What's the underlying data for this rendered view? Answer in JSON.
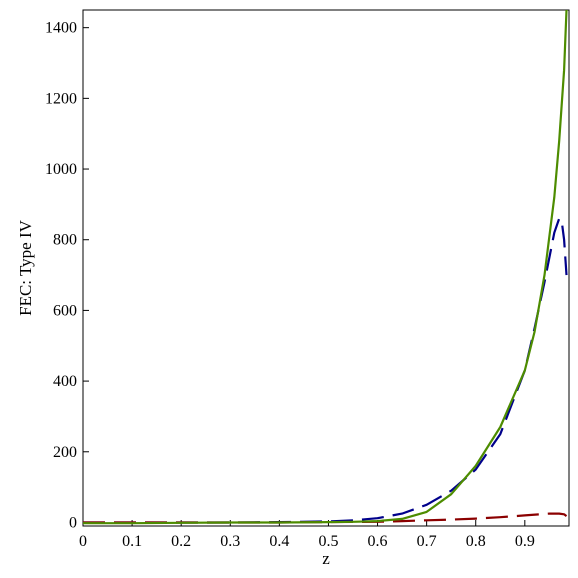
{
  "chart_data": {
    "type": "line",
    "xlabel": "z",
    "ylabel": "FEC: Type IV",
    "xlim": [
      0,
      0.99
    ],
    "ylim": [
      -10,
      1450
    ],
    "xticks": [
      0,
      0.1,
      0.2,
      0.3,
      0.4,
      0.5,
      0.6,
      0.7,
      0.8,
      0.9
    ],
    "xtick_labels": [
      "0",
      "0.1",
      "0.2",
      "0.3",
      "0.4",
      "0.5",
      "0.6",
      "0.7",
      "0.8",
      "0.9"
    ],
    "yticks": [
      0,
      200,
      400,
      600,
      800,
      1000,
      1200,
      1400
    ],
    "ytick_labels": [
      "0",
      "200",
      "400",
      "600",
      "800",
      "1000",
      "1200",
      "1400"
    ],
    "grid": false,
    "series": [
      {
        "color": "#00008b",
        "dash": "long-dash",
        "x": [
          0,
          0.1,
          0.2,
          0.3,
          0.4,
          0.5,
          0.55,
          0.6,
          0.65,
          0.7,
          0.75,
          0.8,
          0.85,
          0.9,
          0.92,
          0.94,
          0.96,
          0.97,
          0.975,
          0.98,
          0.985
        ],
        "y": [
          0,
          0,
          0,
          0,
          1,
          3,
          6,
          12,
          25,
          50,
          90,
          150,
          250,
          430,
          550,
          680,
          820,
          860,
          855,
          800,
          700
        ]
      },
      {
        "color": "#8b0000",
        "dash": "long-dash",
        "x": [
          0,
          0.1,
          0.2,
          0.3,
          0.4,
          0.5,
          0.6,
          0.65,
          0.7,
          0.75,
          0.8,
          0.85,
          0.9,
          0.93,
          0.95,
          0.97,
          0.98,
          0.985
        ],
        "y": [
          0,
          0,
          0,
          0,
          0,
          1,
          2,
          4,
          6,
          8,
          11,
          15,
          20,
          23,
          25,
          25,
          23,
          18
        ]
      },
      {
        "color": "#4d8c00",
        "dash": "solid",
        "x": [
          0,
          0.1,
          0.2,
          0.3,
          0.4,
          0.5,
          0.55,
          0.6,
          0.65,
          0.7,
          0.75,
          0.8,
          0.85,
          0.9,
          0.92,
          0.94,
          0.96,
          0.97,
          0.98,
          0.985
        ],
        "y": [
          -2,
          -2,
          -1,
          0,
          0,
          1,
          2,
          4,
          10,
          30,
          80,
          160,
          270,
          430,
          540,
          700,
          920,
          1080,
          1280,
          1450
        ]
      }
    ]
  }
}
